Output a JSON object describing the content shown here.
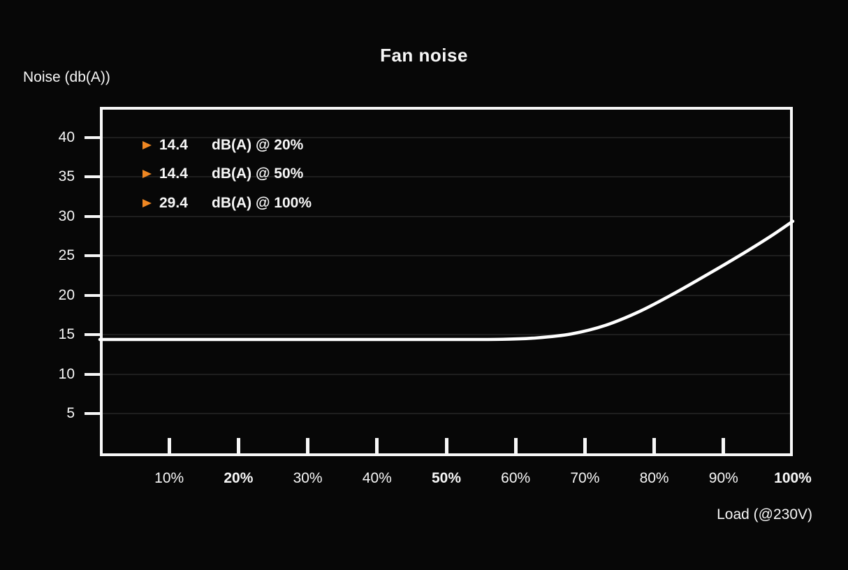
{
  "colors": {
    "background": "#070707",
    "foreground": "#f7f7f7",
    "accent_orange": "#ef8722",
    "curve": "#ffffff",
    "grid": "#1e1e1e"
  },
  "header": {
    "title": "Fan noise"
  },
  "axis_labels": {
    "y": "Noise (db(A))",
    "x": "Load (@230V)"
  },
  "legend": [
    {
      "marker": "triangle-right",
      "value": "14.4",
      "label": "dB(A) @ 20%"
    },
    {
      "marker": "triangle-right",
      "value": "14.4",
      "label": "dB(A) @ 50%"
    },
    {
      "marker": "triangle-right",
      "value": "29.4",
      "label": "dB(A) @ 100%"
    }
  ],
  "chart_data": {
    "type": "line",
    "title": "Fan noise",
    "xlabel": "Load (@230V)",
    "ylabel": "Noise (db(A))",
    "xlim": [
      0,
      100
    ],
    "ylim": [
      -0.4,
      43.9
    ],
    "grid": true,
    "legend_position": "top-left",
    "x_ticks": [
      {
        "value": 10,
        "label": "10%",
        "bold": false
      },
      {
        "value": 20,
        "label": "20%",
        "bold": true
      },
      {
        "value": 30,
        "label": "30%",
        "bold": false
      },
      {
        "value": 40,
        "label": "40%",
        "bold": false
      },
      {
        "value": 50,
        "label": "50%",
        "bold": true
      },
      {
        "value": 60,
        "label": "60%",
        "bold": false
      },
      {
        "value": 70,
        "label": "70%",
        "bold": false
      },
      {
        "value": 80,
        "label": "80%",
        "bold": false
      },
      {
        "value": 90,
        "label": "90%",
        "bold": false
      },
      {
        "value": 100,
        "label": "100%",
        "bold": true
      }
    ],
    "y_ticks": [
      {
        "value": 40,
        "label": "40"
      },
      {
        "value": 35,
        "label": "35"
      },
      {
        "value": 30,
        "label": "30"
      },
      {
        "value": 25,
        "label": "25"
      },
      {
        "value": 20,
        "label": "20"
      },
      {
        "value": 15,
        "label": "15"
      },
      {
        "value": 10,
        "label": "10"
      },
      {
        "value": 5,
        "label": "5"
      }
    ],
    "series": [
      {
        "name": "fan-noise-curve",
        "color": "#ffffff",
        "points": [
          [
            0,
            14.4
          ],
          [
            10,
            14.4
          ],
          [
            20,
            14.4
          ],
          [
            30,
            14.4
          ],
          [
            40,
            14.4
          ],
          [
            50,
            14.4
          ],
          [
            58,
            14.42
          ],
          [
            63,
            14.6
          ],
          [
            68,
            15.1
          ],
          [
            73,
            16.2
          ],
          [
            78,
            18.0
          ],
          [
            83,
            20.3
          ],
          [
            88,
            22.8
          ],
          [
            93,
            25.4
          ],
          [
            97,
            27.6
          ],
          [
            100,
            29.4
          ]
        ]
      }
    ],
    "key_points": [
      {
        "load": "20%",
        "noise_db": 14.4
      },
      {
        "load": "50%",
        "noise_db": 14.4
      },
      {
        "load": "100%",
        "noise_db": 29.4
      }
    ]
  }
}
